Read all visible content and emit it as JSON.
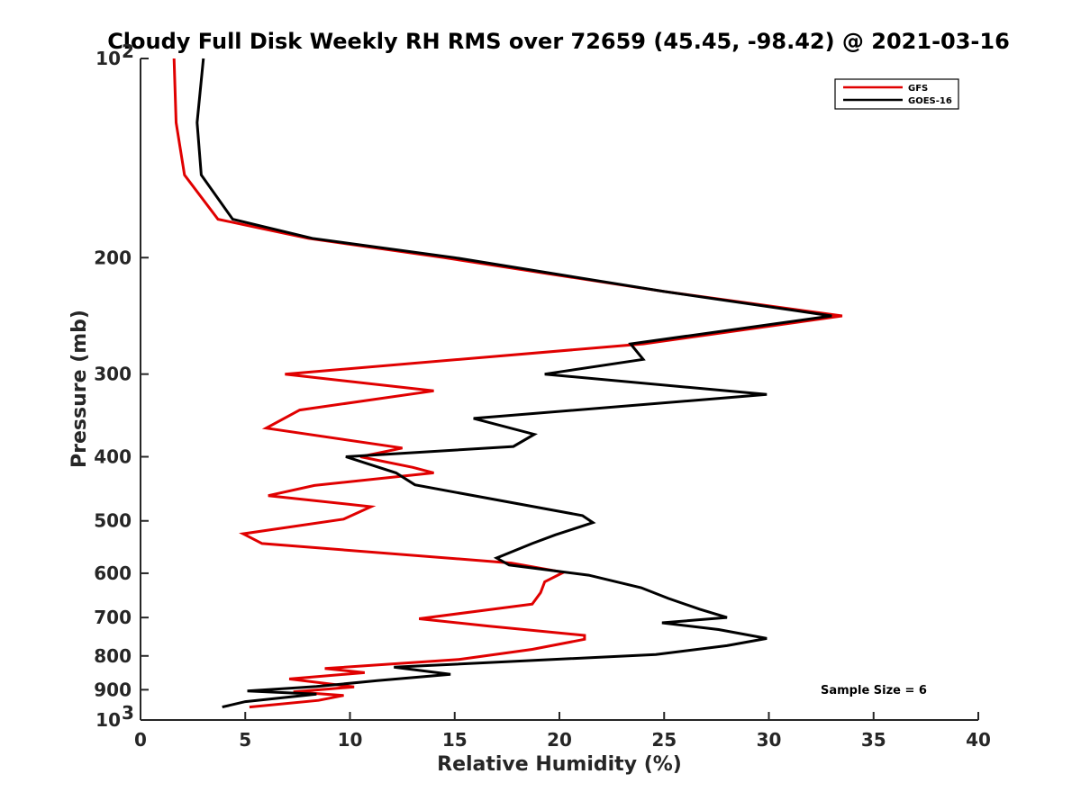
{
  "chart_data": {
    "type": "line",
    "title": "Cloudy Full Disk Weekly RH RMS over 72659 (45.45, -98.42) @ 2021-03-16",
    "xlabel": "Relative Humidity (%)",
    "ylabel": "Pressure (mb)",
    "xlim": [
      0,
      40
    ],
    "ylim": [
      100,
      1000
    ],
    "yscale": "log",
    "y_reversed": true,
    "x_ticks": [
      "0",
      "5",
      "10",
      "15",
      "20",
      "25",
      "30",
      "35",
      "40"
    ],
    "y_ticks": [
      {
        "value": 100,
        "label": "10",
        "sup": "2"
      },
      {
        "value": 200,
        "label": "200"
      },
      {
        "value": 300,
        "label": "300"
      },
      {
        "value": 400,
        "label": "400"
      },
      {
        "value": 500,
        "label": "500"
      },
      {
        "value": 600,
        "label": "600"
      },
      {
        "value": 700,
        "label": "700"
      },
      {
        "value": 800,
        "label": "800"
      },
      {
        "value": 900,
        "label": "900"
      },
      {
        "value": 1000,
        "label": "10",
        "sup": "3"
      }
    ],
    "grid": false,
    "legend_position": "top-right",
    "annotation": "Sample Size = 6",
    "series": [
      {
        "name": "GFS",
        "color": "#e00000",
        "points": [
          [
            1.6,
            100
          ],
          [
            1.7,
            125
          ],
          [
            2.1,
            150
          ],
          [
            3.7,
            175
          ],
          [
            8.0,
            187
          ],
          [
            14.5,
            200
          ],
          [
            25.0,
            225
          ],
          [
            33.5,
            245
          ],
          [
            24.0,
            270
          ],
          [
            6.9,
            300
          ],
          [
            14.0,
            318
          ],
          [
            7.6,
            340
          ],
          [
            6.0,
            362
          ],
          [
            12.5,
            388
          ],
          [
            10.5,
            400
          ],
          [
            13.0,
            415
          ],
          [
            14.0,
            423
          ],
          [
            8.3,
            442
          ],
          [
            6.1,
            458
          ],
          [
            11.0,
            476
          ],
          [
            9.7,
            497
          ],
          [
            4.9,
            523
          ],
          [
            5.8,
            541
          ],
          [
            17.7,
            579
          ],
          [
            20.2,
            598
          ],
          [
            19.3,
            618
          ],
          [
            19.1,
            642
          ],
          [
            18.7,
            668
          ],
          [
            13.3,
            703
          ],
          [
            16.6,
            721
          ],
          [
            21.2,
            745
          ],
          [
            21.2,
            755
          ],
          [
            18.7,
            782
          ],
          [
            15.2,
            810
          ],
          [
            8.8,
            836
          ],
          [
            10.7,
            848
          ],
          [
            7.1,
            867
          ],
          [
            10.2,
            891
          ],
          [
            7.3,
            907
          ],
          [
            9.7,
            918
          ],
          [
            8.5,
            934
          ],
          [
            5.2,
            956
          ]
        ]
      },
      {
        "name": "GOES-16",
        "color": "#000000",
        "points": [
          [
            3.0,
            100
          ],
          [
            2.7,
            125
          ],
          [
            2.9,
            150
          ],
          [
            4.4,
            175
          ],
          [
            8.2,
            187
          ],
          [
            15.0,
            200
          ],
          [
            25.0,
            225
          ],
          [
            33.0,
            245
          ],
          [
            23.4,
            270
          ],
          [
            24.0,
            285
          ],
          [
            19.3,
            300
          ],
          [
            29.9,
            322
          ],
          [
            15.9,
            350
          ],
          [
            18.8,
            370
          ],
          [
            17.8,
            386
          ],
          [
            9.8,
            400
          ],
          [
            12.2,
            423
          ],
          [
            13.1,
            441
          ],
          [
            21.1,
            491
          ],
          [
            21.6,
            503
          ],
          [
            19.8,
            525
          ],
          [
            18.7,
            541
          ],
          [
            17.0,
            569
          ],
          [
            17.6,
            583
          ],
          [
            21.4,
            604
          ],
          [
            23.9,
            631
          ],
          [
            25.2,
            655
          ],
          [
            26.7,
            680
          ],
          [
            28.0,
            700
          ],
          [
            24.9,
            713
          ],
          [
            27.6,
            730
          ],
          [
            29.9,
            753
          ],
          [
            28.0,
            772
          ],
          [
            24.6,
            796
          ],
          [
            12.1,
            832
          ],
          [
            14.8,
            853
          ],
          [
            11.3,
            872
          ],
          [
            8.4,
            890
          ],
          [
            5.1,
            904
          ],
          [
            8.4,
            914
          ],
          [
            5.0,
            938
          ],
          [
            3.9,
            956
          ]
        ]
      }
    ]
  }
}
